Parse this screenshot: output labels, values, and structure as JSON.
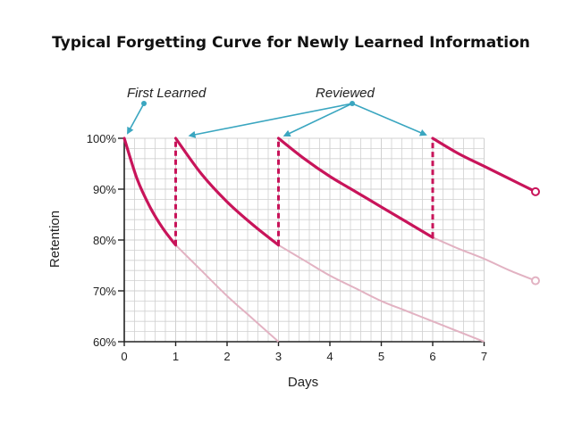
{
  "chart_data": {
    "type": "line",
    "title": "Typical Forgetting Curve for Newly Learned Information",
    "xlabel": "Days",
    "ylabel": "Retention",
    "xlim": [
      0,
      7
    ],
    "ylim": [
      60,
      100
    ],
    "x_ticks": [
      "0",
      "1",
      "2",
      "3",
      "4",
      "5",
      "6",
      "7"
    ],
    "y_ticks": [
      "60%",
      "70%",
      "80%",
      "90%",
      "100%"
    ],
    "grid": true,
    "colors": {
      "active": "#c8145a",
      "faded": "#e2b2c2",
      "annotation": "#3aa6c0",
      "grid": "#d0d0d0"
    },
    "active_segments": [
      {
        "x": [
          0,
          0.25,
          0.5,
          0.75,
          1
        ],
        "y": [
          100,
          92,
          86.5,
          82.3,
          79
        ]
      },
      {
        "x": [
          1,
          1.5,
          2,
          2.5,
          3
        ],
        "y": [
          100,
          93,
          87.5,
          83,
          79
        ]
      },
      {
        "x": [
          3,
          3.5,
          4,
          4.5,
          5,
          5.5,
          6
        ],
        "y": [
          100,
          96,
          92.5,
          89.5,
          86.5,
          83.5,
          80.5
        ]
      },
      {
        "x": [
          6,
          6.5,
          7,
          7.5,
          8
        ],
        "y": [
          100,
          97,
          94.5,
          92,
          89.5
        ]
      }
    ],
    "faded_segments": [
      {
        "x": [
          1,
          1.5,
          2,
          2.5,
          3
        ],
        "y": [
          79,
          74,
          69,
          64.5,
          60
        ]
      },
      {
        "x": [
          3,
          3.5,
          4,
          4.5,
          5,
          5.5,
          6,
          6.5,
          7
        ],
        "y": [
          79,
          76,
          73,
          70.5,
          68,
          66,
          64,
          62,
          60
        ]
      },
      {
        "x": [
          6,
          6.5,
          7,
          7.5,
          8
        ],
        "y": [
          80.5,
          78.3,
          76.3,
          74,
          72
        ]
      }
    ],
    "reviews": [
      {
        "x": 1,
        "from": 79,
        "to": 100
      },
      {
        "x": 3,
        "from": 79,
        "to": 100
      },
      {
        "x": 6,
        "from": 80.5,
        "to": 100
      }
    ],
    "annotations": {
      "first_learned": "First Learned",
      "reviewed": "Reviewed"
    }
  }
}
